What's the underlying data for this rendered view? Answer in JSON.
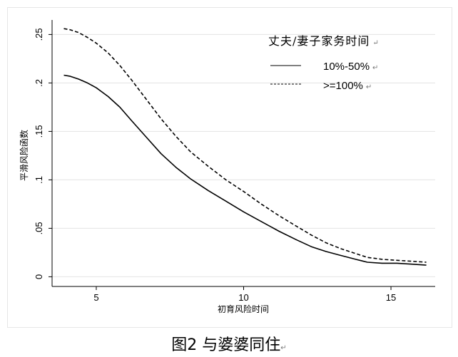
{
  "chart_data": {
    "type": "line",
    "ylabel": "平滑风险函数",
    "xlabel": "初育风险时间",
    "xlim": [
      3.5,
      16.5
    ],
    "ylim": [
      -0.01,
      0.265
    ],
    "xticks": [
      5,
      10,
      15
    ],
    "xtick_labels": [
      "5",
      "10",
      "15"
    ],
    "yticks": [
      0,
      0.05,
      0.1,
      0.15,
      0.2,
      0.25
    ],
    "ytick_labels": [
      "0",
      ".05",
      ".1",
      ".15",
      ".2",
      ".25"
    ],
    "grid": true,
    "legend": {
      "title": "丈夫/妻子家务时间",
      "title_mark": "↵",
      "placement": "top-right"
    },
    "series": [
      {
        "name": "10%-50%",
        "style": "solid",
        "x": [
          3.9,
          4.1,
          4.4,
          4.7,
          5.0,
          5.4,
          5.8,
          6.2,
          6.7,
          7.2,
          7.7,
          8.2,
          8.8,
          9.4,
          10.0,
          10.6,
          11.2,
          11.8,
          12.3,
          12.8,
          13.3,
          13.8,
          14.2,
          14.7,
          15.2,
          15.7,
          16.2
        ],
        "y": [
          0.208,
          0.207,
          0.204,
          0.2,
          0.195,
          0.186,
          0.175,
          0.161,
          0.144,
          0.127,
          0.113,
          0.101,
          0.089,
          0.078,
          0.067,
          0.057,
          0.047,
          0.038,
          0.031,
          0.026,
          0.022,
          0.018,
          0.015,
          0.014,
          0.014,
          0.013,
          0.012
        ]
      },
      {
        "name": ">=100%",
        "style": "dashed",
        "x": [
          3.9,
          4.1,
          4.4,
          4.7,
          5.0,
          5.4,
          5.8,
          6.2,
          6.7,
          7.2,
          7.7,
          8.2,
          8.8,
          9.4,
          10.0,
          10.6,
          11.2,
          11.8,
          12.3,
          12.8,
          13.3,
          13.8,
          14.2,
          14.7,
          15.2,
          15.7,
          16.2
        ],
        "y": [
          0.256,
          0.255,
          0.252,
          0.247,
          0.241,
          0.231,
          0.218,
          0.203,
          0.183,
          0.163,
          0.145,
          0.129,
          0.114,
          0.1,
          0.088,
          0.075,
          0.063,
          0.052,
          0.043,
          0.035,
          0.029,
          0.024,
          0.02,
          0.018,
          0.017,
          0.016,
          0.015
        ]
      }
    ],
    "item_mark": "↵",
    "caption": "图2 与婆婆同住",
    "caption_mark": "↵"
  }
}
